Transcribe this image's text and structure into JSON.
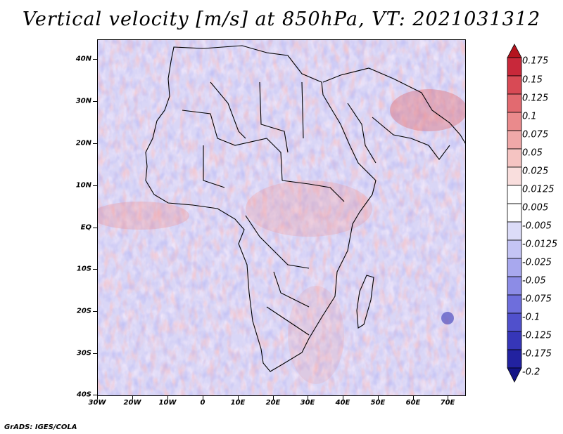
{
  "title": "Vertical velocity [m/s] at 850hPa, VT: 2021031312",
  "map": {
    "lat_labels": [
      "40N",
      "30N",
      "20N",
      "10N",
      "EQ",
      "10S",
      "20S",
      "30S",
      "40S"
    ],
    "lon_labels": [
      "30W",
      "20W",
      "10W",
      "0",
      "10E",
      "20E",
      "30E",
      "40E",
      "50E",
      "60E",
      "70E"
    ]
  },
  "colorbar": {
    "labels": [
      "0.175",
      "0.15",
      "0.125",
      "0.1",
      "0.075",
      "0.05",
      "0.025",
      "0.0125",
      "0.005",
      "-0.005",
      "-0.0125",
      "-0.025",
      "-0.05",
      "-0.075",
      "-0.1",
      "-0.125",
      "-0.175",
      "-0.2"
    ],
    "colors": [
      "#b4141e",
      "#c8283a",
      "#d84a55",
      "#e26a70",
      "#ea8a8c",
      "#f0a8a8",
      "#f5c4c2",
      "#f9dedd",
      "#ffffff",
      "#ffffff",
      "#dcdcf8",
      "#c4c4f4",
      "#a8a8ee",
      "#8c8ce6",
      "#6e6edc",
      "#5050cc",
      "#3636b8",
      "#2222a0",
      "#141486"
    ]
  },
  "footer": "GrADS: IGES/COLA"
}
